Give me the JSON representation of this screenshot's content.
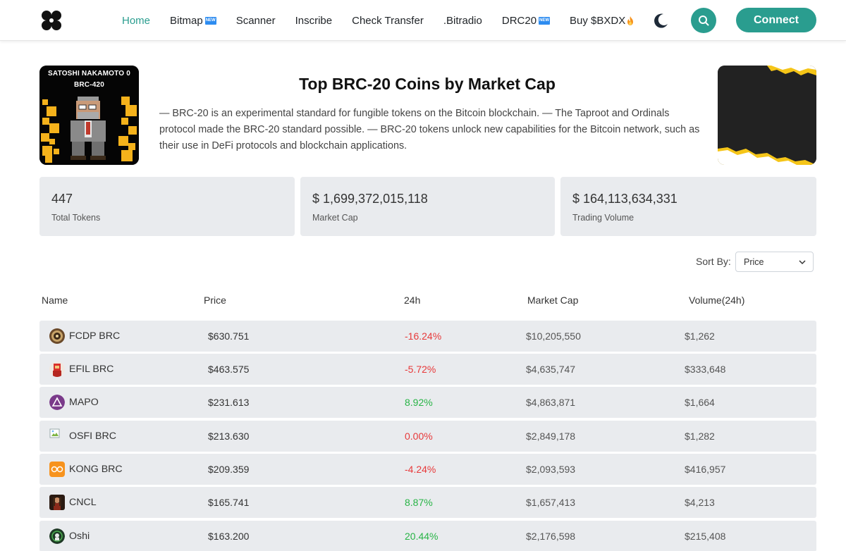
{
  "nav": {
    "links": [
      {
        "label": "Home",
        "active": true
      },
      {
        "label": "Bitmap",
        "badge": "NEW"
      },
      {
        "label": "Scanner"
      },
      {
        "label": "Inscribe"
      },
      {
        "label": "Check Transfer"
      },
      {
        "label": ".Bitradio"
      },
      {
        "label": "DRC20",
        "badge": "NEW"
      },
      {
        "label": "Buy $BXDX",
        "icon": "fire-icon"
      }
    ],
    "connect_label": "Connect",
    "icons": [
      "logo-icon",
      "moon-icon",
      "search-icon"
    ]
  },
  "hero": {
    "image_caption_line1": "SATOSHI NAKAMOTO 0",
    "image_caption_line2": "BRC-420",
    "title": "Top BRC-20 Coins by Market Cap",
    "description": "— BRC-20 is an experimental standard for fungible tokens on the Bitcoin blockchain. — The Taproot and Ordinals protocol made the BRC-20 standard possible. — BRC-20 tokens unlock new capabilities for the Bitcoin network, such as their use in DeFi protocols and blockchain applications."
  },
  "stats": [
    {
      "value": "447",
      "label": "Total Tokens"
    },
    {
      "value": "$ 1,699,372,015,118",
      "label": "Market Cap"
    },
    {
      "value": "$ 164,113,634,331",
      "label": "Trading Volume"
    }
  ],
  "sort": {
    "label": "Sort By:",
    "selected": "Price"
  },
  "table": {
    "headers": [
      "Name",
      "Price",
      "24h",
      "Market Cap",
      "Volume(24h)"
    ],
    "rows": [
      {
        "name": "FCDP BRC",
        "price": "$630.751",
        "change": "-16.24%",
        "direction": "down",
        "market_cap": "$10,205,550",
        "volume": "$1,262",
        "icon": "fcdp-token-icon"
      },
      {
        "name": "EFIL BRC",
        "price": "$463.575",
        "change": "-5.72%",
        "direction": "down",
        "market_cap": "$4,635,747",
        "volume": "$333,648",
        "icon": "efil-token-icon"
      },
      {
        "name": "MAPO",
        "price": "$231.613",
        "change": "8.92%",
        "direction": "up",
        "market_cap": "$4,863,871",
        "volume": "$1,664",
        "icon": "mapo-token-icon"
      },
      {
        "name": "OSFI BRC",
        "price": "$213.630",
        "change": "0.00%",
        "direction": "down",
        "market_cap": "$2,849,178",
        "volume": "$1,282",
        "icon": "broken-image-icon"
      },
      {
        "name": "KONG BRC",
        "price": "$209.359",
        "change": "-4.24%",
        "direction": "down",
        "market_cap": "$2,093,593",
        "volume": "$416,957",
        "icon": "kong-token-icon"
      },
      {
        "name": "CNCL",
        "price": "$165.741",
        "change": "8.87%",
        "direction": "up",
        "market_cap": "$1,657,413",
        "volume": "$4,213",
        "icon": "cncl-token-icon"
      },
      {
        "name": "Oshi",
        "price": "$163.200",
        "change": "20.44%",
        "direction": "up",
        "market_cap": "$2,176,598",
        "volume": "$215,408",
        "icon": "oshi-token-icon"
      }
    ]
  },
  "colors": {
    "accent": "#2a9d8f",
    "up": "#28b446",
    "down": "#e8393a",
    "card_bg": "#e9ebee"
  }
}
